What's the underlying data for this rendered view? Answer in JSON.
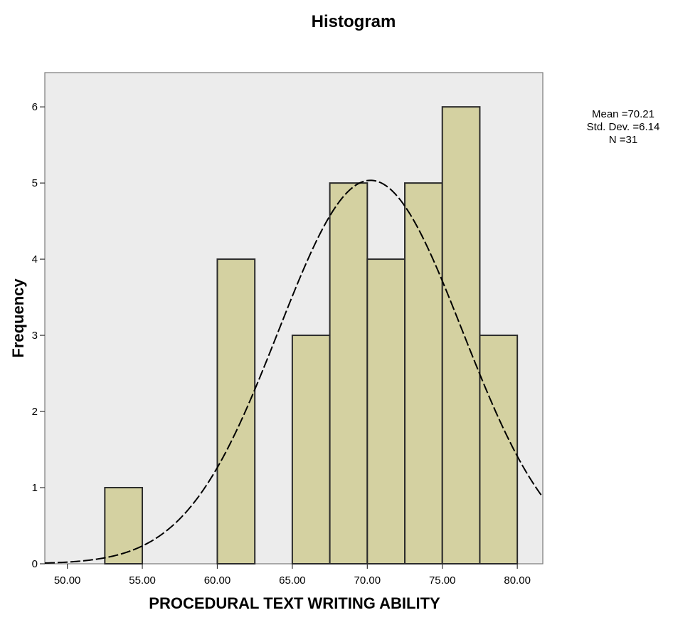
{
  "chart_data": {
    "type": "bar",
    "title": "Histogram",
    "xlabel": "PROCEDURAL TEXT WRITING ABILITY",
    "ylabel": "Frequency",
    "bins": [
      {
        "start": 52.5,
        "end": 55.0,
        "count": 1
      },
      {
        "start": 60.0,
        "end": 62.5,
        "count": 4
      },
      {
        "start": 65.0,
        "end": 67.5,
        "count": 3
      },
      {
        "start": 67.5,
        "end": 70.0,
        "count": 5
      },
      {
        "start": 70.0,
        "end": 72.5,
        "count": 4
      },
      {
        "start": 72.5,
        "end": 75.0,
        "count": 5
      },
      {
        "start": 75.0,
        "end": 77.5,
        "count": 6
      },
      {
        "start": 77.5,
        "end": 80.0,
        "count": 3
      }
    ],
    "x_ticks": [
      {
        "value": 50,
        "label": "50.00"
      },
      {
        "value": 55,
        "label": "55.00"
      },
      {
        "value": 60,
        "label": "60.00"
      },
      {
        "value": 65,
        "label": "65.00"
      },
      {
        "value": 70,
        "label": "70.00"
      },
      {
        "value": 75,
        "label": "75.00"
      },
      {
        "value": 80,
        "label": "80.00"
      }
    ],
    "y_ticks": [
      0,
      1,
      2,
      3,
      4,
      5,
      6
    ],
    "xlim": [
      48.5,
      81.7
    ],
    "ylim": [
      0,
      6.45
    ],
    "normal_curve": {
      "mean": 70.21,
      "sd": 6.14,
      "n": 31,
      "bin_width": 2.5
    },
    "grid": false,
    "legend": "right"
  },
  "stats": {
    "mean_label": "Mean =70.21",
    "sd_label": "Std. Dev. =6.14",
    "n_label": "N =31"
  },
  "colors": {
    "plot_bg": "#ececec",
    "bar_fill": "#d4d1a1",
    "bar_stroke": "#2b2b2b",
    "curve": "#000000"
  }
}
